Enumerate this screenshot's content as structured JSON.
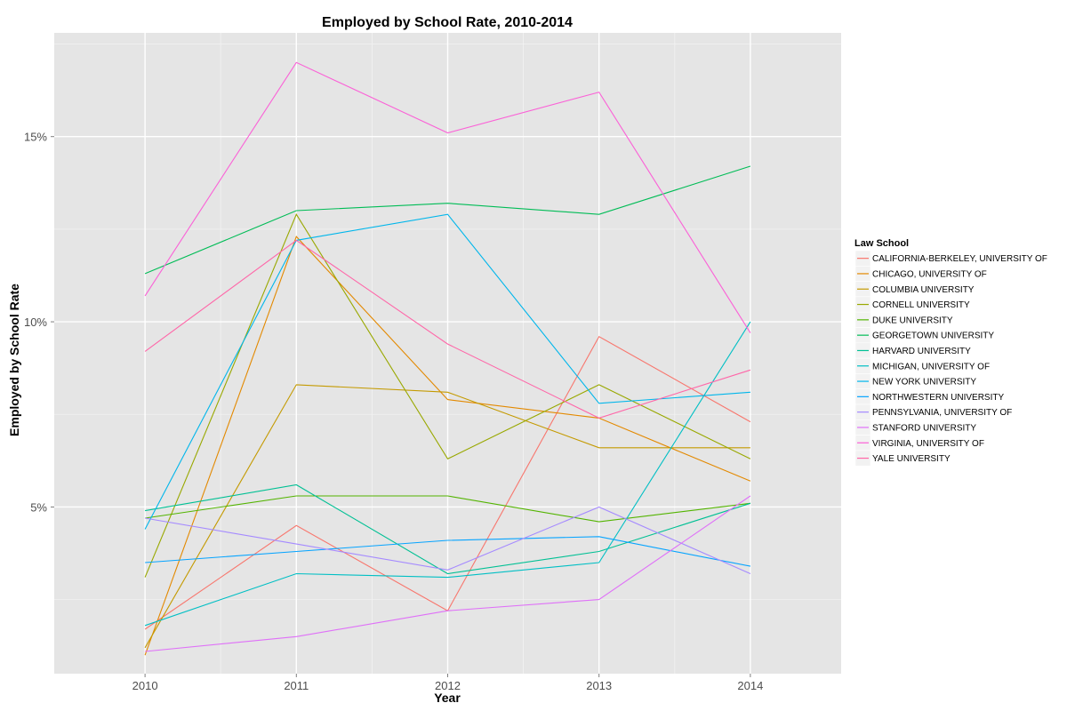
{
  "chart_data": {
    "type": "line",
    "title": "Employed by School Rate, 2010-2014",
    "xlabel": "Year",
    "ylabel": "Employed by School Rate",
    "x": [
      2010,
      2011,
      2012,
      2013,
      2014
    ],
    "xlim": [
      2009.4,
      2014.6
    ],
    "ylim": [
      0.5,
      17.8
    ],
    "y_ticks": [
      5,
      10,
      15
    ],
    "y_tick_labels": [
      "5%",
      "10%",
      "15%"
    ],
    "grid": true,
    "legend": {
      "title": "Law School",
      "position": "right"
    },
    "series": [
      {
        "name": "CALIFORNIA-BERKELEY, UNIVERSITY OF",
        "color": "#F8766D",
        "values": [
          1.7,
          4.5,
          2.2,
          9.6,
          7.3
        ]
      },
      {
        "name": "CHICAGO, UNIVERSITY OF",
        "color": "#E38900",
        "values": [
          1.0,
          12.3,
          7.9,
          7.4,
          5.7
        ]
      },
      {
        "name": "COLUMBIA UNIVERSITY",
        "color": "#C49A00",
        "values": [
          1.2,
          8.3,
          8.1,
          6.6,
          6.6
        ]
      },
      {
        "name": "CORNELL UNIVERSITY",
        "color": "#99A800",
        "values": [
          3.1,
          12.9,
          6.3,
          8.3,
          6.3
        ]
      },
      {
        "name": "DUKE UNIVERSITY",
        "color": "#53B400",
        "values": [
          4.7,
          5.3,
          5.3,
          4.6,
          5.1
        ]
      },
      {
        "name": "GEORGETOWN UNIVERSITY",
        "color": "#00BC56",
        "values": [
          11.3,
          13.0,
          13.2,
          12.9,
          14.2
        ]
      },
      {
        "name": "HARVARD UNIVERSITY",
        "color": "#00C094",
        "values": [
          4.9,
          5.6,
          3.2,
          3.8,
          5.1
        ]
      },
      {
        "name": "MICHIGAN, UNIVERSITY OF",
        "color": "#00BFC4",
        "values": [
          1.8,
          3.2,
          3.1,
          3.5,
          10.0
        ]
      },
      {
        "name": "NEW YORK UNIVERSITY",
        "color": "#00B6EB",
        "values": [
          4.4,
          12.2,
          12.9,
          7.8,
          8.1
        ]
      },
      {
        "name": "NORTHWESTERN UNIVERSITY",
        "color": "#06A4FF",
        "values": [
          3.5,
          3.8,
          4.1,
          4.2,
          3.4
        ]
      },
      {
        "name": "PENNSYLVANIA, UNIVERSITY OF",
        "color": "#A58AFF",
        "values": [
          4.7,
          4.0,
          3.3,
          5.0,
          3.2
        ]
      },
      {
        "name": "STANFORD UNIVERSITY",
        "color": "#DF70F8",
        "values": [
          1.1,
          1.5,
          2.2,
          2.5,
          5.3
        ]
      },
      {
        "name": "VIRGINIA, UNIVERSITY OF",
        "color": "#FB61D7",
        "values": [
          10.7,
          17.0,
          15.1,
          16.2,
          9.7
        ]
      },
      {
        "name": "YALE UNIVERSITY",
        "color": "#FF66A8",
        "values": [
          9.2,
          12.2,
          9.4,
          7.4,
          8.7
        ]
      }
    ],
    "colors": {
      "panel_bg": "#E5E5E5",
      "grid_major": "#FFFFFF",
      "grid_minor": "#F2F2F2",
      "legend_key_bg": "#F2F2F2"
    }
  }
}
